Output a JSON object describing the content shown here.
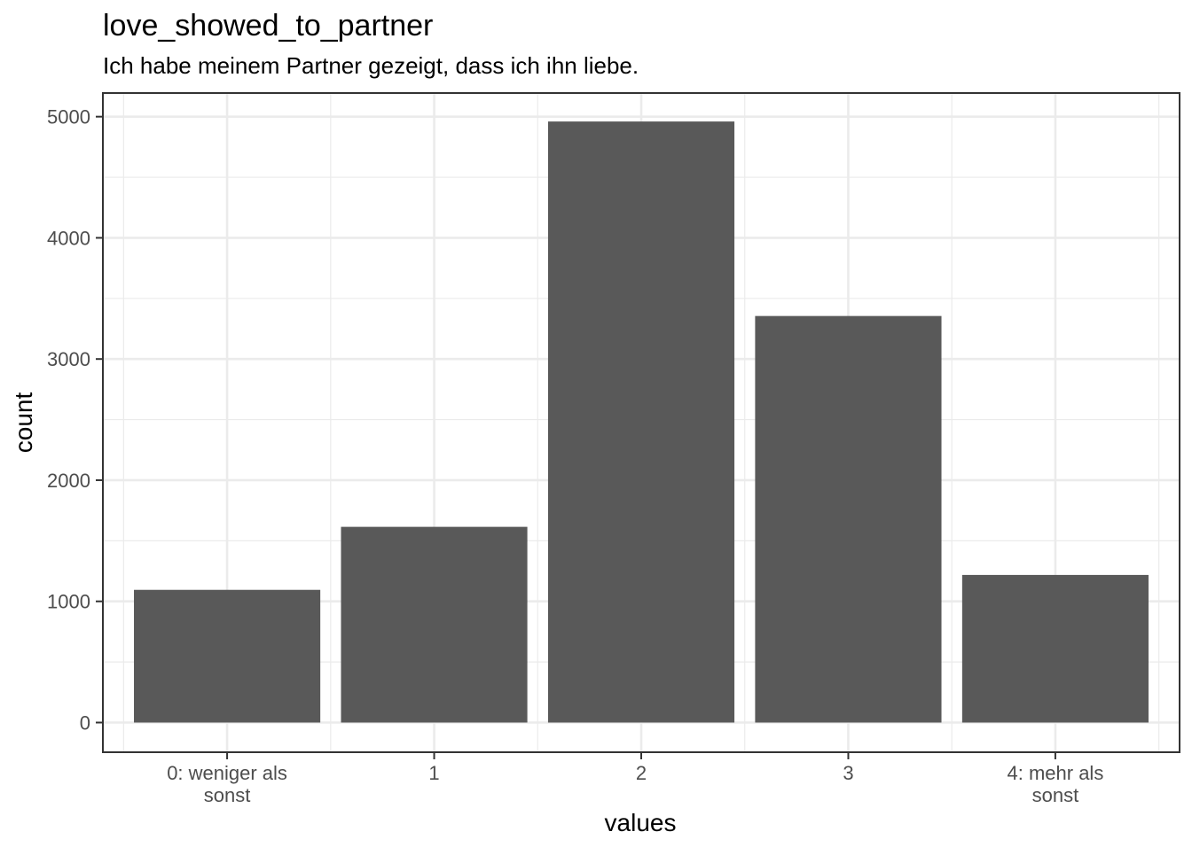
{
  "chart_data": {
    "type": "bar",
    "title": "love_showed_to_partner",
    "subtitle": "Ich habe meinem Partner gezeigt, dass ich ihn liebe.",
    "xlabel": "values",
    "ylabel": "count",
    "categories": [
      [
        "0: weniger als",
        "sonst"
      ],
      [
        "1"
      ],
      [
        "2"
      ],
      [
        "3"
      ],
      [
        "4: mehr als",
        "sonst"
      ]
    ],
    "values": [
      1095,
      1615,
      4960,
      3355,
      1218
    ],
    "ylim": [
      -245,
      5195
    ],
    "yticks": [
      0,
      1000,
      2000,
      3000,
      4000,
      5000
    ],
    "grid": true,
    "bar_color": "#595959",
    "grid_color": "#ebebeb",
    "panel_border_color": "#333333"
  }
}
